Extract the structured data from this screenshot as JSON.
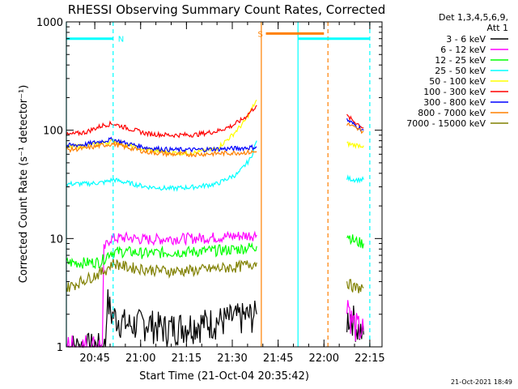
{
  "chart_data": {
    "type": "line",
    "title": "RHESSI Observing Summary Count Rates, Corrected",
    "ylabel": "Corrected Count Rate (s⁻¹ detector⁻¹)",
    "xlabel": "Start Time (21-Oct-04 20:35:42)",
    "x_unit": "minutes of day",
    "xlim": [
      1235.7,
      1339.0
    ],
    "ylim": [
      1,
      1000
    ],
    "yscale": "log",
    "yticks": [
      {
        "v": 1,
        "label": "1"
      },
      {
        "v": 10,
        "label": "10"
      },
      {
        "v": 100,
        "label": "100"
      },
      {
        "v": 1000,
        "label": "1000"
      }
    ],
    "xticks": [
      {
        "t": 1245,
        "label": "20:45"
      },
      {
        "t": 1260,
        "label": "21:00"
      },
      {
        "t": 1275,
        "label": "21:15"
      },
      {
        "t": 1290,
        "label": "21:30"
      },
      {
        "t": 1305,
        "label": "21:45"
      },
      {
        "t": 1320,
        "label": "22:00"
      },
      {
        "t": 1335,
        "label": "22:15"
      }
    ],
    "legend_header": [
      "Det 1,3,4,5,6,9,",
      "Att 1"
    ],
    "legend_position": "right",
    "footer": "21-Oct-2021 18:49",
    "bg": "#ffffff",
    "series": [
      {
        "name": "3 - 6 keV",
        "color": "#000000",
        "segments": [
          [
            [
              1235.7,
              1
            ],
            [
              1242,
              1
            ],
            [
              1248.5,
              1
            ],
            [
              1249.0,
              2.8
            ],
            [
              1250.5,
              2.0
            ],
            [
              1256,
              1.6
            ],
            [
              1262,
              1.7
            ],
            [
              1268,
              1.5
            ],
            [
              1275,
              1.6
            ],
            [
              1282,
              1.7
            ],
            [
              1288,
              1.8
            ],
            [
              1293,
              1.9
            ],
            [
              1298,
              2.0
            ]
          ],
          [
            [
              1327.5,
              1.8
            ],
            [
              1329,
              2.0
            ],
            [
              1331,
              1.5
            ],
            [
              1333,
              1.3
            ]
          ]
        ]
      },
      {
        "name": "6 - 12 keV",
        "color": "#ff00ff",
        "segments": [
          [
            [
              1235.7,
              1
            ],
            [
              1243,
              1
            ],
            [
              1247.5,
              1
            ],
            [
              1248.0,
              8.0
            ],
            [
              1250,
              10.0
            ],
            [
              1255,
              10.2
            ],
            [
              1262,
              9.8
            ],
            [
              1270,
              10.0
            ],
            [
              1278,
              10.1
            ],
            [
              1285,
              10.3
            ],
            [
              1292,
              10.6
            ],
            [
              1298,
              10.8
            ]
          ],
          [
            [
              1327.5,
              3.0
            ],
            [
              1329,
              1.8
            ],
            [
              1331,
              1.5
            ],
            [
              1333,
              1.4
            ]
          ]
        ]
      },
      {
        "name": "12 - 25 keV",
        "color": "#00ff00",
        "segments": [
          [
            [
              1235.7,
              6.0
            ],
            [
              1242,
              6.0
            ],
            [
              1247,
              6.1
            ],
            [
              1250,
              7.5
            ],
            [
              1255,
              7.6
            ],
            [
              1262,
              7.3
            ],
            [
              1270,
              7.5
            ],
            [
              1278,
              7.6
            ],
            [
              1285,
              7.8
            ],
            [
              1292,
              8.0
            ],
            [
              1298,
              8.5
            ]
          ],
          [
            [
              1327.5,
              11.0
            ],
            [
              1330,
              9.5
            ],
            [
              1333,
              9.0
            ]
          ]
        ]
      },
      {
        "name": "25 - 50 keV",
        "color": "#00ffff",
        "segments": [
          [
            [
              1235.7,
              32
            ],
            [
              1242,
              32
            ],
            [
              1248,
              33
            ],
            [
              1251,
              35
            ],
            [
              1255,
              33
            ],
            [
              1262,
              30
            ],
            [
              1270,
              29
            ],
            [
              1278,
              30
            ],
            [
              1285,
              32
            ],
            [
              1292,
              40
            ],
            [
              1296,
              55
            ],
            [
              1298,
              80
            ]
          ],
          [
            [
              1327.5,
              36
            ],
            [
              1330,
              35
            ],
            [
              1333,
              35
            ]
          ]
        ]
      },
      {
        "name": "50 - 100 keV",
        "color": "#ffff00",
        "segments": [
          [
            [
              1235.7,
              70
            ],
            [
              1242,
              72
            ],
            [
              1248,
              76
            ],
            [
              1251,
              80
            ],
            [
              1255,
              73
            ],
            [
              1262,
              66
            ],
            [
              1270,
              62
            ],
            [
              1278,
              62
            ],
            [
              1285,
              68
            ],
            [
              1290,
              90
            ],
            [
              1294,
              120
            ],
            [
              1298,
              190
            ]
          ],
          [
            [
              1327.5,
              75
            ],
            [
              1330,
              73
            ],
            [
              1333,
              72
            ]
          ]
        ]
      },
      {
        "name": "100 - 300 keV",
        "color": "#ff0000",
        "segments": [
          [
            [
              1235.7,
              90
            ],
            [
              1242,
              96
            ],
            [
              1248,
              112
            ],
            [
              1251,
              115
            ],
            [
              1255,
              106
            ],
            [
              1262,
              93
            ],
            [
              1270,
              90
            ],
            [
              1278,
              91
            ],
            [
              1285,
              98
            ],
            [
              1290,
              110
            ],
            [
              1294,
              130
            ],
            [
              1298,
              170
            ]
          ],
          [
            [
              1327.5,
              135
            ],
            [
              1330,
              120
            ],
            [
              1333,
              105
            ]
          ]
        ]
      },
      {
        "name": "300 - 800 keV",
        "color": "#0000ff",
        "segments": [
          [
            [
              1235.7,
              72
            ],
            [
              1242,
              74
            ],
            [
              1248,
              80
            ],
            [
              1251,
              82
            ],
            [
              1255,
              76
            ],
            [
              1262,
              69
            ],
            [
              1270,
              66
            ],
            [
              1278,
              66
            ],
            [
              1285,
              67
            ],
            [
              1292,
              68
            ],
            [
              1298,
              70
            ]
          ],
          [
            [
              1327.5,
              125
            ],
            [
              1330,
              112
            ],
            [
              1333,
              100
            ]
          ]
        ]
      },
      {
        "name": "800 - 7000 keV",
        "color": "#ff8000",
        "segments": [
          [
            [
              1235.7,
              66
            ],
            [
              1242,
              68
            ],
            [
              1248,
              73
            ],
            [
              1251,
              75
            ],
            [
              1255,
              70
            ],
            [
              1262,
              63
            ],
            [
              1270,
              60
            ],
            [
              1278,
              60
            ],
            [
              1285,
              61
            ],
            [
              1292,
              62
            ],
            [
              1298,
              63
            ]
          ],
          [
            [
              1327.5,
              115
            ],
            [
              1330,
              105
            ],
            [
              1333,
              97
            ]
          ]
        ]
      },
      {
        "name": "7000 - 15000 keV",
        "color": "#808000",
        "segments": [
          [
            [
              1235.7,
              3.5
            ],
            [
              1242,
              4.2
            ],
            [
              1248,
              5.0
            ],
            [
              1251,
              6.0
            ],
            [
              1255,
              5.5
            ],
            [
              1262,
              5.2
            ],
            [
              1270,
              5.0
            ],
            [
              1278,
              5.1
            ],
            [
              1285,
              5.3
            ],
            [
              1292,
              5.5
            ],
            [
              1298,
              6.0
            ]
          ],
          [
            [
              1327.5,
              4.0
            ],
            [
              1330,
              3.5
            ],
            [
              1333,
              3.5
            ]
          ]
        ]
      }
    ],
    "orbit_markers": [
      {
        "t": 1235.7,
        "color": "#00ffff",
        "style": "solid"
      },
      {
        "t": 1251.0,
        "color": "#00ffff",
        "style": "dashed"
      },
      {
        "t": 1299.5,
        "color": "#ff8000",
        "style": "solid"
      },
      {
        "t": 1311.5,
        "color": "#00ffff",
        "style": "solid"
      },
      {
        "t": 1321.3,
        "color": "#ff8000",
        "style": "dashed"
      },
      {
        "t": 1335.0,
        "color": "#00ffff",
        "style": "dashed"
      }
    ],
    "flag_bars": [
      {
        "t0": 1235.7,
        "t1": 1251.0,
        "y": 700,
        "color": "#00ffff",
        "label": "N"
      },
      {
        "t0": 1301.0,
        "t1": 1320.0,
        "y": 780,
        "color": "#ff8000",
        "label": "S"
      },
      {
        "t0": 1311.5,
        "t1": 1335.0,
        "y": 700,
        "color": "#00ffff",
        "label": ""
      }
    ]
  }
}
